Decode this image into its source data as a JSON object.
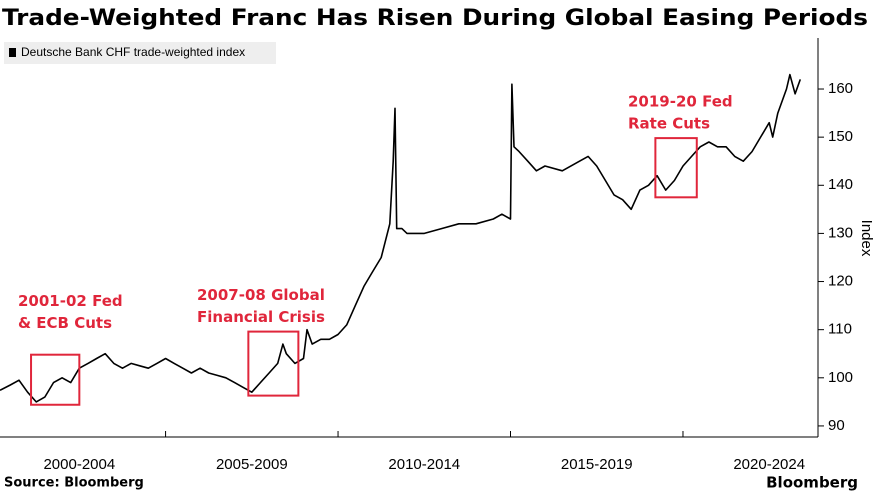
{
  "chart_data": {
    "type": "line",
    "title": "Trade-Weighted Franc Has Risen During Global Easing Periods",
    "y_label": "Index",
    "source": "Source: Bloomberg",
    "brand": "Bloomberg",
    "x": [
      2000.2,
      2000.5,
      2000.75,
      2001.0,
      2001.25,
      2001.5,
      2001.75,
      2002.0,
      2002.25,
      2002.5,
      2002.75,
      2003.0,
      2003.25,
      2003.5,
      2003.75,
      2004.0,
      2004.25,
      2004.5,
      2004.75,
      2005.0,
      2005.25,
      2005.5,
      2005.75,
      2006.0,
      2006.25,
      2006.5,
      2006.75,
      2007.0,
      2007.25,
      2007.5,
      2007.75,
      2008.0,
      2008.25,
      2008.4,
      2008.5,
      2008.75,
      2009.0,
      2009.1,
      2009.25,
      2009.5,
      2009.75,
      2010.0,
      2010.25,
      2010.5,
      2010.75,
      2011.0,
      2011.25,
      2011.5,
      2011.6,
      2011.65,
      2011.7,
      2011.85,
      2012.0,
      2012.5,
      2013.0,
      2013.5,
      2014.0,
      2014.5,
      2014.75,
      2015.0,
      2015.04,
      2015.1,
      2015.25,
      2015.5,
      2015.75,
      2016.0,
      2016.5,
      2017.0,
      2017.25,
      2017.5,
      2017.75,
      2018.0,
      2018.25,
      2018.5,
      2018.75,
      2019.0,
      2019.25,
      2019.5,
      2019.75,
      2020.0,
      2020.25,
      2020.5,
      2020.75,
      2021.0,
      2021.25,
      2021.5,
      2021.75,
      2022.0,
      2022.25,
      2022.5,
      2022.6,
      2022.75,
      2023.0,
      2023.1,
      2023.25,
      2023.4
    ],
    "series": [
      {
        "name": "Deutsche Bank CHF trade-weighted index",
        "color": "#000000",
        "values": [
          97.4,
          98.5,
          99.5,
          97,
          95,
          96,
          99,
          100,
          99,
          102,
          103,
          104,
          105,
          103,
          102,
          103,
          102.5,
          102,
          103,
          104,
          103,
          102,
          101,
          102,
          101,
          100.5,
          100,
          99,
          98,
          97,
          99,
          101,
          103,
          107,
          105,
          103,
          104,
          110,
          107,
          108,
          108,
          109,
          111,
          115,
          119,
          122,
          125,
          132,
          145,
          156,
          131,
          131,
          130,
          130,
          131,
          132,
          132,
          133,
          134,
          133,
          161,
          148,
          147,
          145,
          143,
          144,
          143,
          145,
          146,
          144,
          141,
          138,
          137,
          135,
          139,
          140,
          142,
          139,
          141,
          144,
          146,
          148,
          149,
          148,
          148,
          146,
          145,
          147,
          150,
          153,
          150,
          155,
          160,
          163,
          159,
          162
        ]
      }
    ],
    "xlim": [
      2000.2,
      2024.9
    ],
    "xticks": [
      {
        "value": 2002.5,
        "label": "2000-2004"
      },
      {
        "value": 2007.5,
        "label": "2005-2009"
      },
      {
        "value": 2012.5,
        "label": "2010-2014"
      },
      {
        "value": 2017.5,
        "label": "2015-2019"
      },
      {
        "value": 2022.5,
        "label": "2020-2024"
      }
    ],
    "ylim": [
      87.7,
      170.6
    ],
    "yticks": [
      90,
      100,
      110,
      120,
      130,
      140,
      150,
      160
    ],
    "annotations": [
      {
        "lines": [
          "2001-02 Fed",
          "& ECB Cuts"
        ],
        "color": "#e0263b",
        "box": {
          "x": [
            2001.1,
            2002.5
          ],
          "y": [
            94.4,
            104.8
          ]
        }
      },
      {
        "lines": [
          "2007-08 Global",
          "Financial Crisis"
        ],
        "color": "#e0263b",
        "box": {
          "x": [
            2007.4,
            2008.85
          ],
          "y": [
            96.3,
            109.6
          ]
        }
      },
      {
        "lines": [
          "2019-20 Fed",
          "Rate Cuts"
        ],
        "color": "#e0263b",
        "box": {
          "x": [
            2019.2,
            2020.4
          ],
          "y": [
            137.5,
            149.8
          ]
        }
      }
    ]
  }
}
